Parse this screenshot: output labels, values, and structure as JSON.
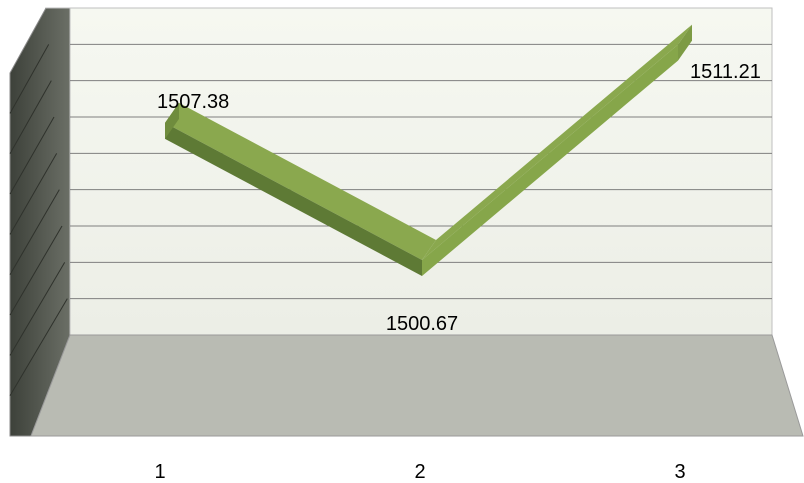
{
  "chart_data": {
    "type": "line",
    "style": "3d-ribbon",
    "categories": [
      "1",
      "2",
      "3"
    ],
    "values": [
      1507.38,
      1500.67,
      1511.21
    ],
    "data_labels": [
      "1507.38",
      "1500.67",
      "1511.21"
    ],
    "title": "",
    "xlabel": "",
    "ylabel": "",
    "ylim": [
      1497,
      1513
    ],
    "grid": true,
    "legend": "none"
  },
  "colors": {
    "ribbon_top": "#8aa84e",
    "ribbon_front_dark": "#5e7a35",
    "ribbon_front_light": "#86a64a",
    "back_wall": "#f1f3ec",
    "side_wall": "#5b5f56",
    "floor": "#b9bbb3",
    "gridline": "#7f7f7f"
  }
}
